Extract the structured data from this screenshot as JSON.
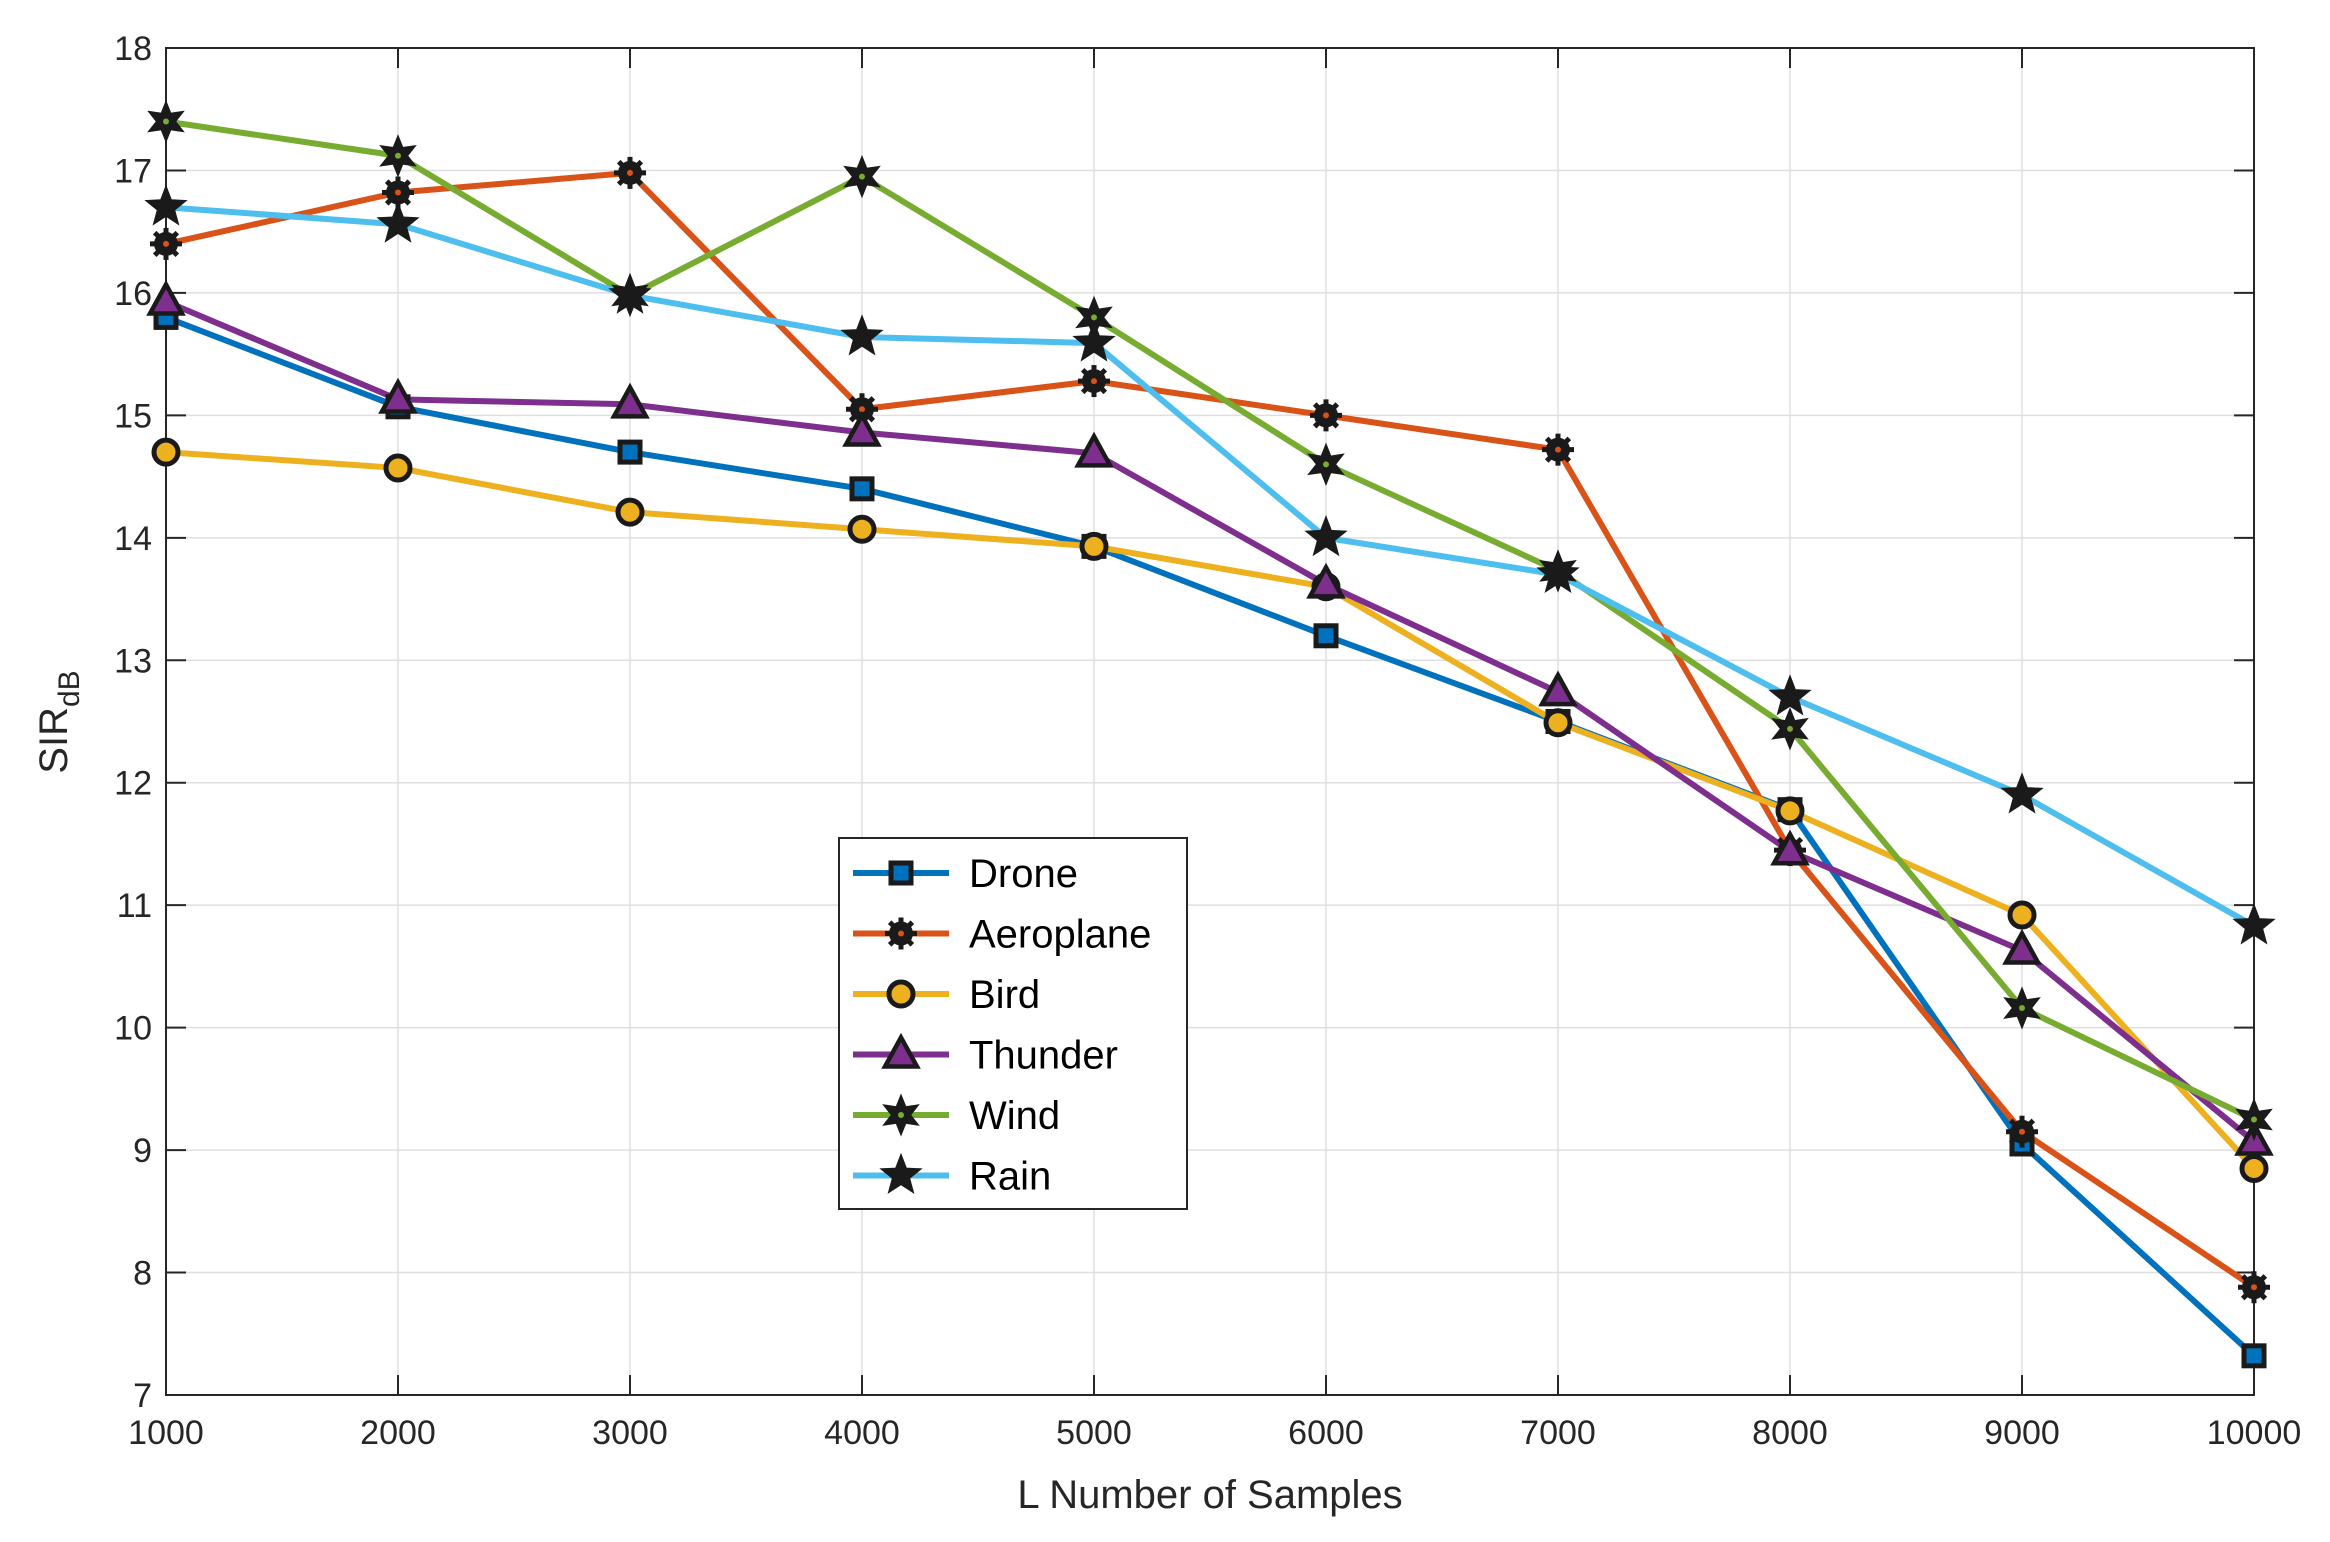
{
  "chart_data": {
    "type": "line",
    "title": "",
    "xlabel": "L Number of Samples",
    "ylabel": "SIR",
    "ylabel_sub": "dB",
    "xlim": [
      1000,
      10000
    ],
    "ylim": [
      7,
      18
    ],
    "grid": true,
    "legend_position": "center-left",
    "x": [
      1000,
      2000,
      3000,
      4000,
      5000,
      6000,
      7000,
      8000,
      9000,
      10000
    ],
    "x_tick_labels": [
      "1000",
      "2000",
      "3000",
      "4000",
      "5000",
      "6000",
      "7000",
      "8000",
      "9000",
      "10000"
    ],
    "y_ticks": [
      7,
      8,
      9,
      10,
      11,
      12,
      13,
      14,
      15,
      16,
      17,
      18
    ],
    "y_tick_labels": [
      "7",
      "8",
      "9",
      "10",
      "11",
      "12",
      "13",
      "14",
      "15",
      "16",
      "17",
      "18"
    ],
    "series": [
      {
        "name": "Drone",
        "color": "#0072BD",
        "marker": "square",
        "values": [
          15.8,
          15.07,
          14.7,
          14.4,
          13.93,
          13.2,
          12.5,
          11.78,
          9.05,
          7.32
        ]
      },
      {
        "name": "Aeroplane",
        "color": "#D95319",
        "marker": "asterisk",
        "values": [
          16.4,
          16.82,
          16.98,
          15.05,
          15.28,
          15.0,
          14.72,
          11.45,
          9.15,
          7.88
        ]
      },
      {
        "name": "Bird",
        "color": "#EDB120",
        "marker": "circle",
        "values": [
          14.7,
          14.57,
          14.21,
          14.07,
          13.93,
          13.6,
          12.49,
          11.77,
          10.92,
          8.85
        ]
      },
      {
        "name": "Thunder",
        "color": "#7E2F8E",
        "marker": "triangle",
        "values": [
          15.93,
          15.13,
          15.09,
          14.86,
          14.69,
          13.62,
          12.74,
          11.44,
          10.63,
          9.07
        ]
      },
      {
        "name": "Wind",
        "color": "#77AC30",
        "marker": "hexagram",
        "values": [
          17.4,
          17.12,
          15.98,
          16.95,
          15.8,
          14.6,
          13.73,
          12.44,
          10.16,
          9.25
        ]
      },
      {
        "name": "Rain",
        "color": "#4DBEEE",
        "marker": "star",
        "values": [
          16.7,
          16.56,
          15.98,
          15.64,
          15.59,
          14.0,
          13.7,
          12.7,
          11.9,
          10.83
        ]
      }
    ]
  }
}
